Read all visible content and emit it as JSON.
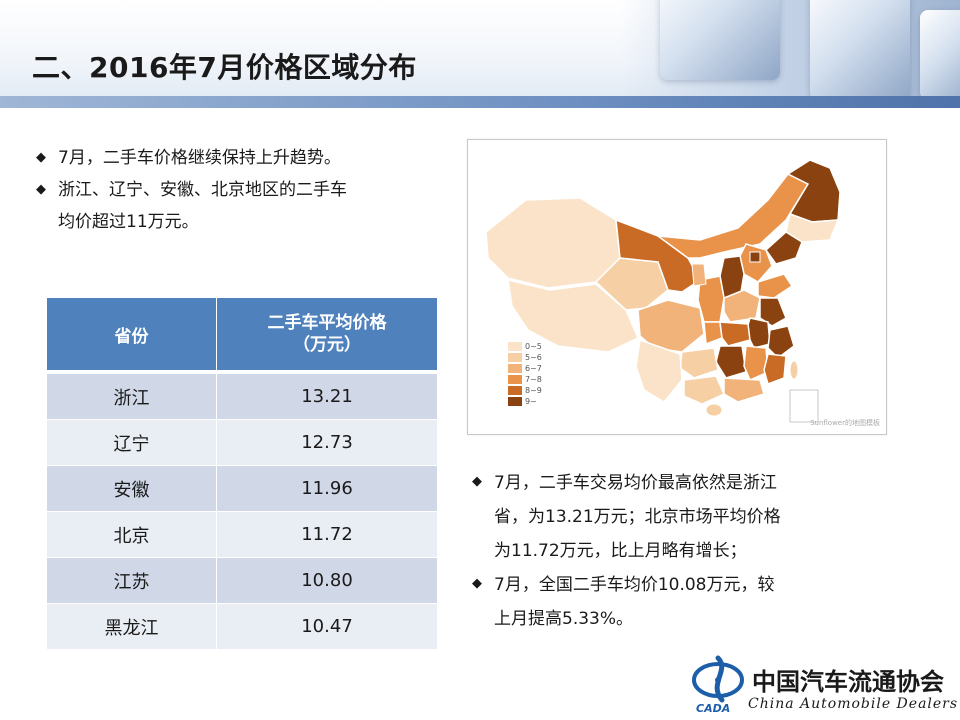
{
  "header": {
    "title": "二、2016年7月价格区域分布"
  },
  "bullets_top": [
    "7月，二手车价格继续保持上升趋势。",
    "浙江、辽宁、安徽、北京地区的二手车",
    "均价超过11万元。"
  ],
  "table": {
    "headers": [
      "省份",
      "二手车平均价格",
      "（万元）"
    ],
    "rows": [
      {
        "province": "浙江",
        "price": "13.21"
      },
      {
        "province": "辽宁",
        "price": "12.73"
      },
      {
        "province": "安徽",
        "price": "11.96"
      },
      {
        "province": "北京",
        "price": "11.72"
      },
      {
        "province": "江苏",
        "price": "10.80"
      },
      {
        "province": "黑龙江",
        "price": "10.47"
      }
    ]
  },
  "map": {
    "legend": [
      {
        "label": "0~5",
        "color": "#fbe3c9"
      },
      {
        "label": "5~6",
        "color": "#f6cfa4"
      },
      {
        "label": "6~7",
        "color": "#f1b37a"
      },
      {
        "label": "7~8",
        "color": "#e8924a"
      },
      {
        "label": "8~9",
        "color": "#c96b24"
      },
      {
        "label": "9~",
        "color": "#8a4310"
      }
    ],
    "watermark": "Sunflower的地图模板"
  },
  "bullets_bottom": {
    "b1_line1": "7月，二手车交易均价最高依然是浙江",
    "b1_line2": "省，为13.21万元；北京市场平均价格",
    "b1_line3": "为11.72万元，比上月略有增长；",
    "b2_line1": "7月，全国二手车均价10.08万元，较",
    "b2_line2": "上月提高5.33%。"
  },
  "footer": {
    "org_cn": "中国汽车流通协会",
    "org_en": "China  Automobile Dealers",
    "logo_text": "CADA"
  },
  "icons": {
    "bullet": "diamond-bullet-icon"
  }
}
